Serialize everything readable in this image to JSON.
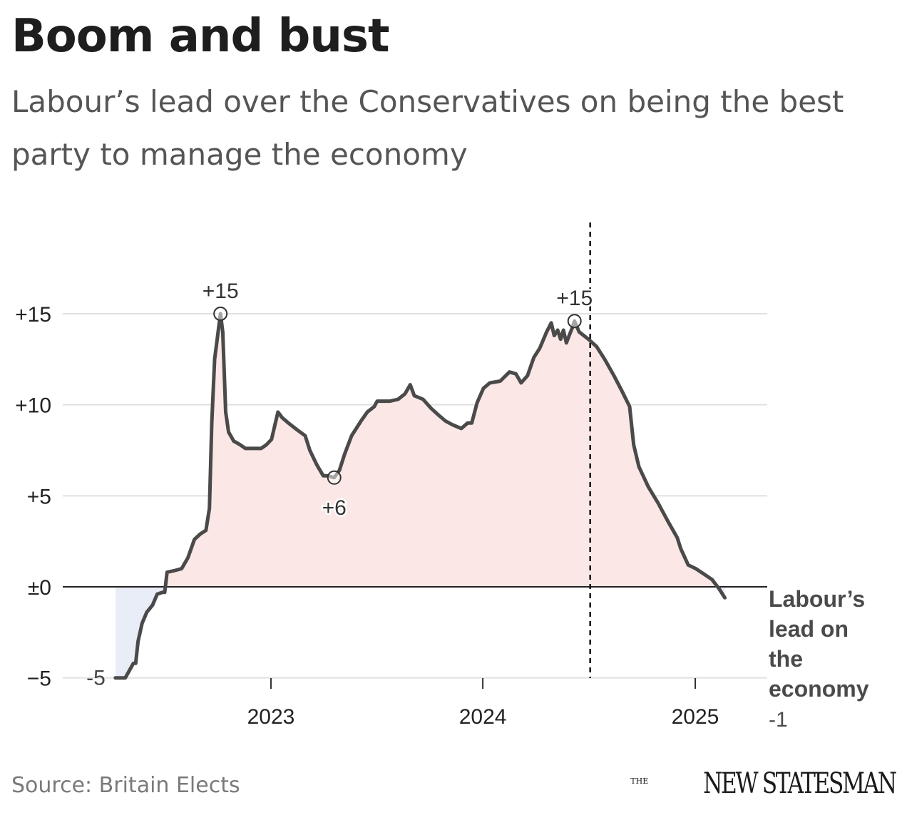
{
  "title": "Boom and bust",
  "subtitle": "Labour’s lead over the Conservatives on being the best party to manage the economy",
  "source": "Source: Britain Elects",
  "brand": {
    "prefix": "THE",
    "name": "NEW STATESMAN"
  },
  "colors": {
    "line": "#4a4a4a",
    "positive_fill": "#fbe8e6",
    "negative_fill": "#e8edf7",
    "grid": "#e0e0e0",
    "zero_line": "#222222"
  },
  "chart_data": {
    "type": "area",
    "title": "Boom and bust",
    "subtitle": "Labour’s lead over the Conservatives on being the best party to manage the economy",
    "series": [
      {
        "name": "Labour’s lead on the economy",
        "end_label": "-1",
        "points": [
          [
            "2022-04-08",
            -5
          ],
          [
            "2022-04-25",
            -5
          ],
          [
            "2022-05-02",
            -4.6
          ],
          [
            "2022-05-09",
            -4.2
          ],
          [
            "2022-05-13",
            -4.2
          ],
          [
            "2022-05-17",
            -3.0
          ],
          [
            "2022-05-24",
            -2.0
          ],
          [
            "2022-06-01",
            -1.4
          ],
          [
            "2022-06-11",
            -1.0
          ],
          [
            "2022-06-19",
            -0.4
          ],
          [
            "2022-06-28",
            -0.3
          ],
          [
            "2022-07-02",
            -0.3
          ],
          [
            "2022-07-06",
            0.8
          ],
          [
            "2022-07-20",
            0.9
          ],
          [
            "2022-07-31",
            1.0
          ],
          [
            "2022-08-11",
            1.6
          ],
          [
            "2022-08-22",
            2.6
          ],
          [
            "2022-09-01",
            2.9
          ],
          [
            "2022-09-11",
            3.1
          ],
          [
            "2022-09-17",
            4.3
          ],
          [
            "2022-09-21",
            9.0
          ],
          [
            "2022-09-26",
            12.5
          ],
          [
            "2022-10-02",
            14.0
          ],
          [
            "2022-10-06",
            15.0
          ],
          [
            "2022-10-10",
            14.0
          ],
          [
            "2022-10-15",
            9.6
          ],
          [
            "2022-10-20",
            8.5
          ],
          [
            "2022-10-29",
            8.0
          ],
          [
            "2022-11-09",
            7.8
          ],
          [
            "2022-11-18",
            7.6
          ],
          [
            "2022-12-01",
            7.6
          ],
          [
            "2022-12-15",
            7.6
          ],
          [
            "2022-12-24",
            7.8
          ],
          [
            "2023-01-02",
            8.1
          ],
          [
            "2023-01-13",
            9.6
          ],
          [
            "2023-01-20",
            9.3
          ],
          [
            "2023-01-31",
            9.0
          ],
          [
            "2023-02-16",
            8.6
          ],
          [
            "2023-03-01",
            8.3
          ],
          [
            "2023-03-09",
            7.5
          ],
          [
            "2023-03-21",
            6.7
          ],
          [
            "2023-04-01",
            6.1
          ],
          [
            "2023-04-08",
            6.1
          ],
          [
            "2023-04-20",
            6.0
          ],
          [
            "2023-04-29",
            6.4
          ],
          [
            "2023-05-08",
            7.3
          ],
          [
            "2023-05-20",
            8.3
          ],
          [
            "2023-06-05",
            9.1
          ],
          [
            "2023-06-16",
            9.6
          ],
          [
            "2023-06-28",
            9.9
          ],
          [
            "2023-07-03",
            10.2
          ],
          [
            "2023-07-13",
            10.2
          ],
          [
            "2023-07-25",
            10.2
          ],
          [
            "2023-08-08",
            10.3
          ],
          [
            "2023-08-20",
            10.6
          ],
          [
            "2023-08-29",
            11.1
          ],
          [
            "2023-09-05",
            10.5
          ],
          [
            "2023-09-20",
            10.3
          ],
          [
            "2023-10-04",
            9.8
          ],
          [
            "2023-10-18",
            9.4
          ],
          [
            "2023-10-29",
            9.1
          ],
          [
            "2023-11-10",
            8.9
          ],
          [
            "2023-11-25",
            8.7
          ],
          [
            "2023-12-06",
            9.0
          ],
          [
            "2023-12-13",
            9.0
          ],
          [
            "2023-12-22",
            10.1
          ],
          [
            "2024-01-02",
            10.9
          ],
          [
            "2024-01-13",
            11.2
          ],
          [
            "2024-01-31",
            11.3
          ],
          [
            "2024-02-16",
            11.8
          ],
          [
            "2024-02-27",
            11.7
          ],
          [
            "2024-03-07",
            11.2
          ],
          [
            "2024-03-18",
            11.6
          ],
          [
            "2024-03-29",
            12.6
          ],
          [
            "2024-04-08",
            13.1
          ],
          [
            "2024-04-20",
            14.0
          ],
          [
            "2024-04-28",
            14.5
          ],
          [
            "2024-05-03",
            13.8
          ],
          [
            "2024-05-09",
            14.1
          ],
          [
            "2024-05-14",
            13.6
          ],
          [
            "2024-05-19",
            14.1
          ],
          [
            "2024-05-24",
            13.4
          ],
          [
            "2024-05-30",
            13.9
          ],
          [
            "2024-06-04",
            14.3
          ],
          [
            "2024-06-07",
            14.6
          ],
          [
            "2024-06-15",
            14.0
          ],
          [
            "2024-07-01",
            13.6
          ],
          [
            "2024-07-15",
            13.2
          ],
          [
            "2024-07-29",
            12.5
          ],
          [
            "2024-08-14",
            11.6
          ],
          [
            "2024-08-27",
            10.8
          ],
          [
            "2024-09-10",
            9.9
          ],
          [
            "2024-09-17",
            7.8
          ],
          [
            "2024-09-26",
            6.6
          ],
          [
            "2024-10-12",
            5.5
          ],
          [
            "2024-10-29",
            4.6
          ],
          [
            "2024-11-15",
            3.6
          ],
          [
            "2024-12-01",
            2.7
          ],
          [
            "2024-12-07",
            2.1
          ],
          [
            "2024-12-20",
            1.2
          ],
          [
            "2025-01-02",
            1.0
          ],
          [
            "2025-01-16",
            0.7
          ],
          [
            "2025-01-30",
            0.4
          ],
          [
            "2025-02-11",
            -0.1
          ],
          [
            "2025-02-21",
            -0.6
          ]
        ]
      }
    ],
    "x_ticks": [
      "2023",
      "2024",
      "2025"
    ],
    "y_ticks": [
      "+15",
      "+10",
      "+5",
      "±0",
      "−5"
    ],
    "ylim": [
      -5,
      17
    ],
    "xlim": [
      "2022-04-01",
      "2025-03-10"
    ],
    "grid": true,
    "vertical_marker": {
      "date": "2024-07-04",
      "style": "dashed"
    },
    "annotations": [
      {
        "text": "+15",
        "x": "2022-10-06",
        "y": 15,
        "position": "above"
      },
      {
        "text": "+6",
        "x": "2023-04-20",
        "y": 6,
        "position": "below"
      },
      {
        "text": "+15",
        "x": "2024-06-07",
        "y": 14.6,
        "position": "above"
      },
      {
        "text": "-5",
        "x": "2022-04-08",
        "y": -5,
        "position": "left"
      }
    ],
    "series_label": "Labour’s lead on the economy",
    "series_end_value": "-1"
  }
}
